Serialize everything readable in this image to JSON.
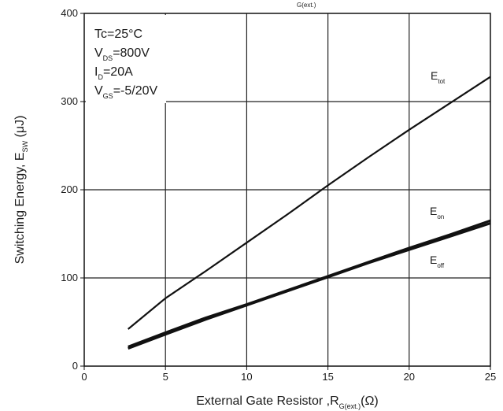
{
  "chart_data": {
    "type": "line",
    "top_title_fragment": {
      "base": "",
      "sub": "G(ext.)"
    },
    "xlabel": {
      "base": "External Gate Resistor ,R",
      "sub": "G(ext.)",
      "suffix": "(Ω)"
    },
    "ylabel": {
      "base": "Switching Energy, E",
      "sub": "SW",
      "suffix": " (μJ)"
    },
    "xlim": [
      0,
      25
    ],
    "ylim": [
      0,
      400
    ],
    "xticks": [
      0,
      5,
      10,
      15,
      20,
      25
    ],
    "yticks": [
      0,
      100,
      200,
      300,
      400
    ],
    "grid": true,
    "conditions": [
      {
        "base": "Tc=25°C",
        "sub": "",
        "suffix": ""
      },
      {
        "base": "V",
        "sub": "DS",
        "suffix": "=800V"
      },
      {
        "base": "I",
        "sub": "D",
        "suffix": "=20A"
      },
      {
        "base": "V",
        "sub": "GS",
        "suffix": "=-5/20V"
      }
    ],
    "series": [
      {
        "name": {
          "base": "E",
          "sub": "tot"
        },
        "color": "#111111",
        "x": [
          2.7,
          5,
          7.5,
          10,
          12.5,
          15,
          17.5,
          20,
          22.5,
          25
        ],
        "y": [
          42,
          77,
          108,
          140,
          172,
          205,
          237,
          268,
          298,
          328
        ]
      },
      {
        "name": {
          "base": "E",
          "sub": "on"
        },
        "color": "#111111",
        "x": [
          2.7,
          5,
          7.5,
          10,
          12.5,
          15,
          17.5,
          20,
          22.5,
          25
        ],
        "y": [
          22,
          38,
          55,
          70,
          86,
          102,
          118,
          134,
          149,
          165
        ]
      },
      {
        "name": {
          "base": "E",
          "sub": "off"
        },
        "color": "#111111",
        "x": [
          2.7,
          5,
          7.5,
          10,
          12.5,
          15,
          17.5,
          20,
          22.5,
          25
        ],
        "y": [
          20,
          36,
          53,
          69,
          85,
          101,
          117,
          132,
          147,
          162
        ]
      }
    ]
  }
}
